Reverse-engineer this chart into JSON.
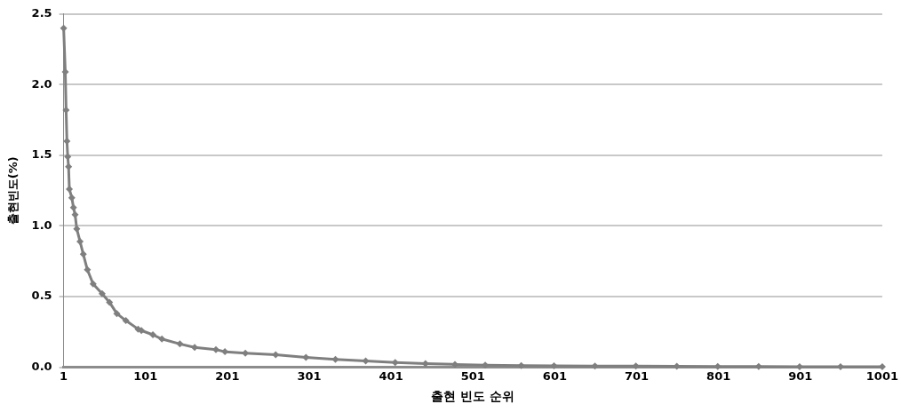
{
  "chart_data": {
    "type": "line",
    "xlabel": "출현 빈도 순위",
    "ylabel": "출현빈도(%)",
    "xlim": [
      1,
      1001
    ],
    "xticks": [
      1,
      101,
      201,
      301,
      401,
      501,
      601,
      701,
      801,
      901,
      1001
    ],
    "ylim": [
      0,
      2.5
    ],
    "yticks": [
      {
        "value": 0,
        "label": "0.0"
      },
      {
        "value": 0.5,
        "label": "0.5"
      },
      {
        "value": 1,
        "label": "1.0"
      },
      {
        "value": 1.5,
        "label": "1.5"
      },
      {
        "value": 2,
        "label": "2.0"
      },
      {
        "value": 2.5,
        "label": "2.5"
      }
    ],
    "grid": "y",
    "legend": false,
    "marker": "diamond",
    "line_style": "solid",
    "series": [
      {
        "color": "#7f7f7f",
        "x": [
          1,
          3,
          4,
          5,
          6,
          7,
          8,
          11,
          13,
          15,
          17,
          21,
          25,
          30,
          37,
          48,
          57,
          66,
          77,
          92,
          96,
          110,
          121,
          143,
          161,
          187,
          198,
          223,
          260,
          297,
          333,
          370,
          406,
          443,
          479,
          516,
          560,
          600,
          650,
          700,
          750,
          800,
          850,
          900,
          950,
          1001
        ],
        "values": [
          2.4,
          2.09,
          1.82,
          1.6,
          1.49,
          1.42,
          1.26,
          1.2,
          1.13,
          1.08,
          0.98,
          0.89,
          0.8,
          0.69,
          0.59,
          0.52,
          0.46,
          0.38,
          0.33,
          0.27,
          0.26,
          0.23,
          0.2,
          0.165,
          0.14,
          0.125,
          0.11,
          0.1,
          0.088,
          0.07,
          0.055,
          0.044,
          0.033,
          0.026,
          0.02,
          0.015,
          0.012,
          0.01,
          0.009,
          0.008,
          0.007,
          0.006,
          0.005,
          0.004,
          0.004,
          0.003
        ]
      }
    ]
  }
}
